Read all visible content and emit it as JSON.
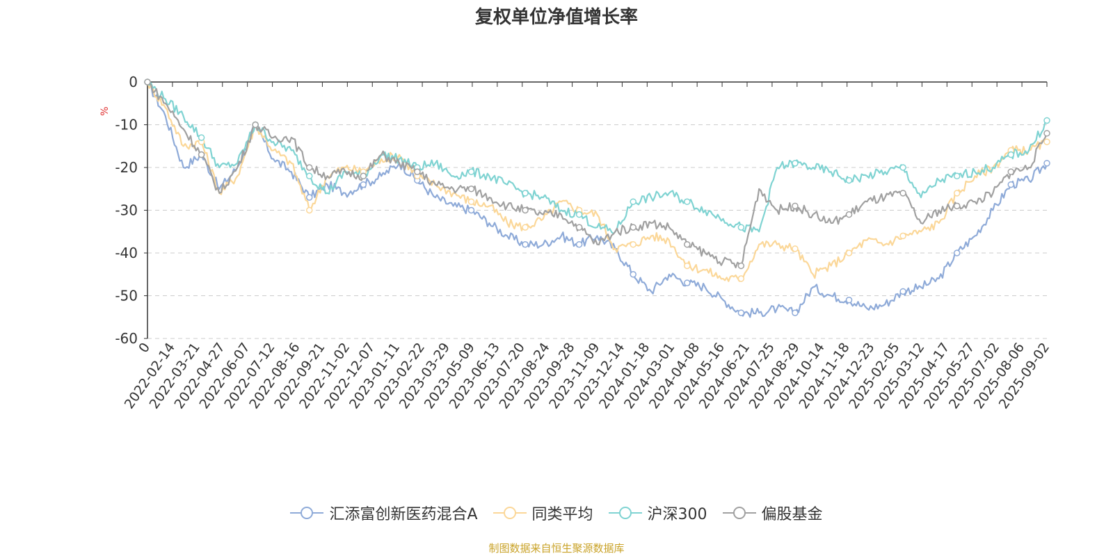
{
  "chart_data": {
    "type": "line",
    "title": "复权单位净值增长率",
    "ylabel": "%",
    "ylim": [
      -60,
      0
    ],
    "yticks": [
      0,
      -10,
      -20,
      -30,
      -40,
      -50,
      -60
    ],
    "grid": true,
    "legend_position": "bottom",
    "x_tick_labels": [
      "0",
      "2022-02-14",
      "2022-03-21",
      "2022-04-27",
      "2022-06-07",
      "2022-07-12",
      "2022-08-16",
      "2022-09-21",
      "2022-11-02",
      "2022-12-07",
      "2023-01-11",
      "2023-02-22",
      "2023-03-29",
      "2023-05-09",
      "2023-06-13",
      "2023-07-20",
      "2023-08-24",
      "2023-09-28",
      "2023-11-09",
      "2023-12-14",
      "2024-01-18",
      "2024-03-01",
      "2024-04-08",
      "2024-05-16",
      "2024-06-21",
      "2024-07-25",
      "2024-08-29",
      "2024-10-14",
      "2024-11-18",
      "2024-12-23",
      "2025-02-05",
      "2025-03-12",
      "2025-04-17",
      "2025-05-27",
      "2025-07-02",
      "2025-08-06",
      "2025-09-02"
    ],
    "series": [
      {
        "name": "汇添富创新医药混合A",
        "color": "#8eaad8",
        "values": [
          0,
          -8,
          -20,
          -17,
          -25,
          -20,
          -10,
          -18,
          -21,
          -27,
          -24,
          -26,
          -24,
          -22,
          -19,
          -23,
          -27,
          -29,
          -30,
          -33,
          -36,
          -38,
          -38,
          -36,
          -38,
          -36,
          -39,
          -45,
          -49,
          -45,
          -47,
          -48,
          -51,
          -54,
          -54,
          -53,
          -54,
          -48,
          -50,
          -51,
          -53,
          -52,
          -49,
          -48,
          -46,
          -40,
          -36,
          -30,
          -24,
          -23,
          -19
        ]
      },
      {
        "name": "同类平均",
        "color": "#fbd798",
        "values": [
          0,
          -6,
          -15,
          -14,
          -26,
          -22,
          -10,
          -16,
          -19,
          -30,
          -22,
          -20,
          -21,
          -18,
          -17,
          -22,
          -24,
          -26,
          -28,
          -29,
          -33,
          -34,
          -32,
          -28,
          -30,
          -31,
          -39,
          -38,
          -36,
          -37,
          -43,
          -44,
          -46,
          -46,
          -38,
          -38,
          -39,
          -45,
          -43,
          -40,
          -37,
          -38,
          -36,
          -35,
          -33,
          -26,
          -22,
          -20,
          -16,
          -16,
          -14
        ]
      },
      {
        "name": "沪深300",
        "color": "#7fd3d2",
        "values": [
          0,
          -4,
          -8,
          -13,
          -20,
          -19,
          -10,
          -14,
          -16,
          -22,
          -26,
          -21,
          -22,
          -17,
          -18,
          -20,
          -19,
          -22,
          -21,
          -22,
          -24,
          -26,
          -27,
          -30,
          -31,
          -34,
          -35,
          -28,
          -27,
          -26,
          -28,
          -30,
          -32,
          -34,
          -35,
          -20,
          -19,
          -20,
          -21,
          -23,
          -22,
          -21,
          -20,
          -27,
          -23,
          -22,
          -21,
          -20,
          -17,
          -16,
          -9
        ]
      },
      {
        "name": "偏股基金",
        "color": "#a0a0a0",
        "values": [
          0,
          -5,
          -11,
          -17,
          -26,
          -20,
          -10,
          -13,
          -13,
          -20,
          -22,
          -21,
          -22,
          -17,
          -19,
          -21,
          -24,
          -25,
          -25,
          -27,
          -29,
          -30,
          -31,
          -31,
          -34,
          -38,
          -35,
          -34,
          -33,
          -34,
          -38,
          -40,
          -42,
          -43,
          -25,
          -30,
          -29,
          -31,
          -33,
          -31,
          -28,
          -27,
          -26,
          -33,
          -30,
          -29,
          -28,
          -26,
          -21,
          -20,
          -12
        ]
      }
    ]
  },
  "source_note": "制图数据来自恒生聚源数据库"
}
